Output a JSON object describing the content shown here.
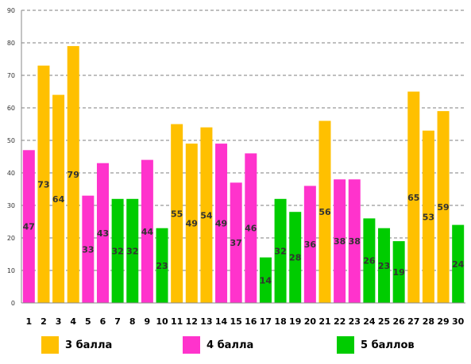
{
  "chart_data": {
    "type": "bar",
    "categories": [
      "1",
      "2",
      "3",
      "4",
      "5",
      "6",
      "7",
      "8",
      "9",
      "10",
      "11",
      "12",
      "13",
      "14",
      "15",
      "16",
      "17",
      "18",
      "19",
      "20",
      "21",
      "22",
      "23",
      "24",
      "25",
      "26",
      "27",
      "28",
      "29",
      "30"
    ],
    "values": [
      47,
      73,
      64,
      79,
      33,
      43,
      32,
      32,
      44,
      23,
      55,
      49,
      54,
      49,
      37,
      46,
      14,
      32,
      28,
      36,
      56,
      38,
      38,
      26,
      23,
      19,
      65,
      53,
      59,
      24
    ],
    "groups": [
      "4",
      "3",
      "3",
      "3",
      "4",
      "4",
      "5",
      "5",
      "4",
      "5",
      "3",
      "3",
      "3",
      "4",
      "4",
      "4",
      "5",
      "5",
      "5",
      "4",
      "3",
      "4",
      "4",
      "5",
      "5",
      "5",
      "3",
      "3",
      "3",
      "5"
    ],
    "ylim": [
      0,
      90
    ],
    "yticks": [
      "0",
      "10",
      "20",
      "30",
      "40",
      "50",
      "60",
      "70",
      "80",
      "90"
    ],
    "grid": true,
    "series": [
      {
        "key": "3",
        "name": "3 балла",
        "color": "#FFC000"
      },
      {
        "key": "4",
        "name": "4 балла",
        "color": "#FF33CC"
      },
      {
        "key": "5",
        "name": "5 баллов",
        "color": "#00CC00"
      }
    ]
  }
}
